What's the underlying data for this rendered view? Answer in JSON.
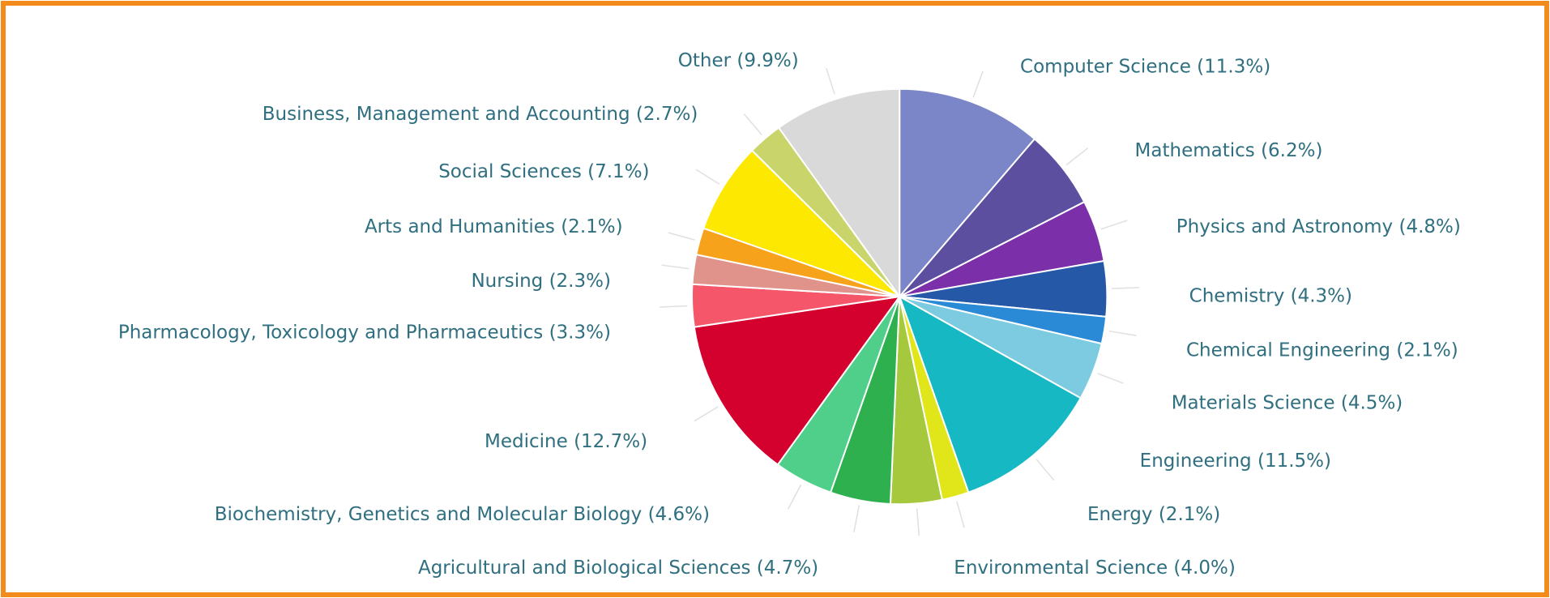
{
  "chart_data": {
    "type": "pie",
    "categories": [
      "Computer Science (11.3%)",
      "Mathematics (6.2%)",
      "Physics and Astronomy (4.8%)",
      "Chemistry (4.3%)",
      "Chemical Engineering (2.1%)",
      "Materials Science (4.5%)",
      "Engineering (11.5%)",
      "Energy (2.1%)",
      "Environmental Science (4.0%)",
      "Agricultural and Biological Sciences (4.7%)",
      "Biochemistry, Genetics and Molecular Biology (4.6%)",
      "Medicine (12.7%)",
      "Pharmacology, Toxicology and Pharmaceutics (3.3%)",
      "Nursing (2.3%)",
      "Arts and Humanities (2.1%)",
      "Social Sciences (7.1%)",
      "Business, Management and Accounting (2.7%)",
      "Other (9.9%)"
    ],
    "values": [
      11.3,
      6.2,
      4.8,
      4.3,
      2.1,
      4.5,
      11.5,
      2.1,
      4.0,
      4.7,
      4.6,
      12.7,
      3.3,
      2.3,
      2.1,
      7.1,
      2.7,
      9.9
    ],
    "colors": [
      "#7b86c8",
      "#5c4fa0",
      "#7b2fa8",
      "#2559a8",
      "#2a8ad6",
      "#7ccbe0",
      "#16b8c4",
      "#e0e61a",
      "#a6c83c",
      "#2eb04f",
      "#4fcf8a",
      "#d4002e",
      "#f5566a",
      "#e0938b",
      "#f7a21b",
      "#fce800",
      "#c9d46a",
      "#d9d9d9"
    ]
  }
}
